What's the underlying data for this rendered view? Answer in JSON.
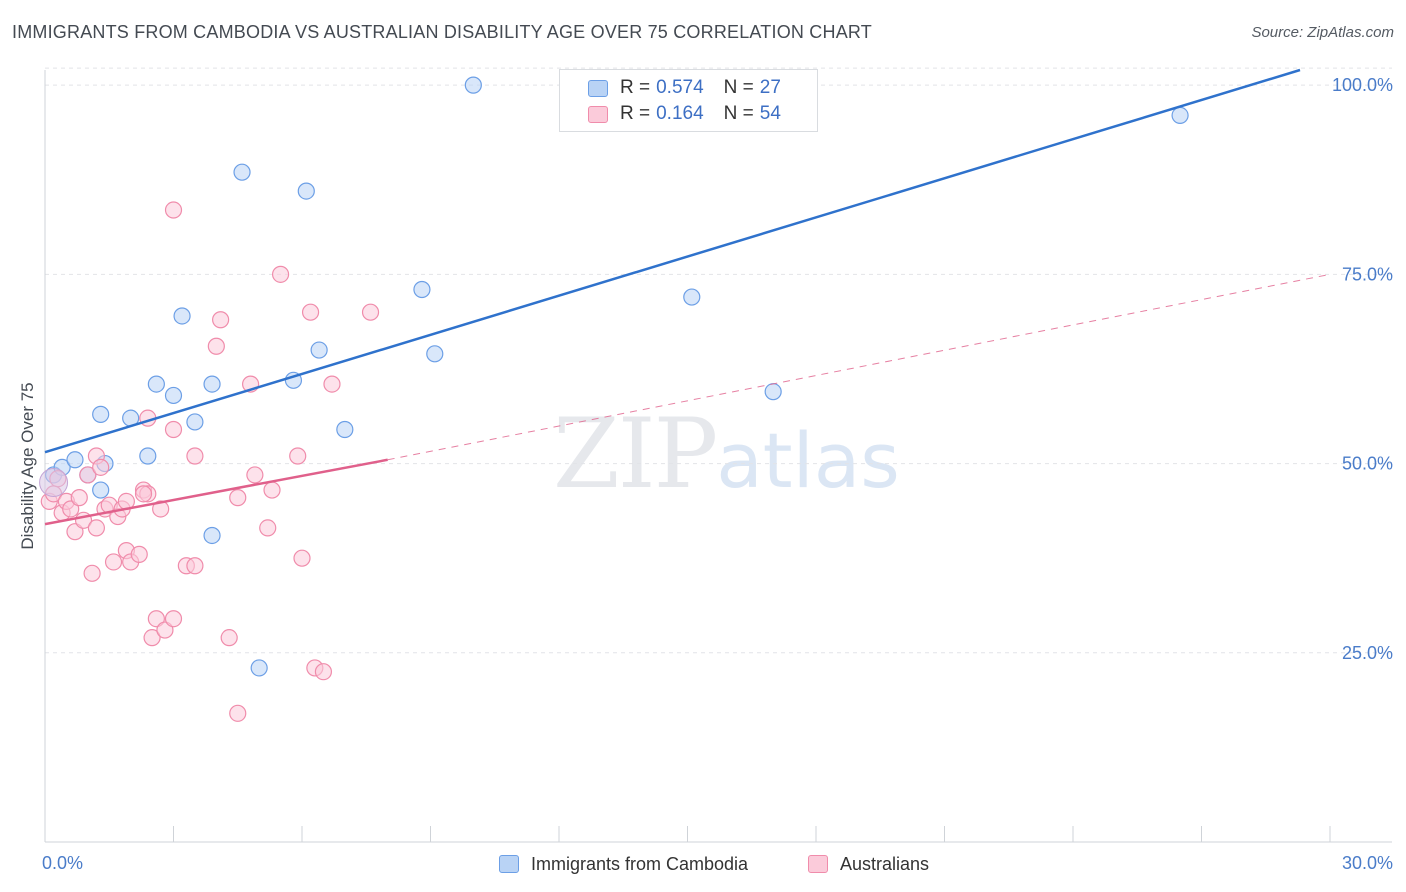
{
  "title": "IMMIGRANTS FROM CAMBODIA VS AUSTRALIAN DISABILITY AGE OVER 75 CORRELATION CHART",
  "source": "Source: ZipAtlas.com",
  "watermark": {
    "zip": "ZIP",
    "atlas": "atlas"
  },
  "legend": {
    "rows": [
      {
        "r_label": "R =",
        "r_value": "0.574",
        "n_label": "N =",
        "n_value": "27",
        "color": "#6c9fe6",
        "fill": "#b9d3f5"
      },
      {
        "r_label": "R =",
        "r_value": "0.164",
        "n_label": "N =",
        "n_value": "54",
        "color": "#f08cab",
        "fill": "#fbcbda"
      }
    ]
  },
  "bottom_legend": [
    {
      "label": "Immigrants from Cambodia",
      "color": "#6c9fe6",
      "fill": "#b9d3f5"
    },
    {
      "label": "Australians",
      "color": "#f08cab",
      "fill": "#fbcbda"
    }
  ],
  "chart_data": {
    "type": "scatter",
    "title": "IMMIGRANTS FROM CAMBODIA VS AUSTRALIAN DISABILITY AGE OVER 75 CORRELATION CHART",
    "xlabel": "",
    "ylabel": "Disability Age Over 75",
    "xlim": [
      0,
      30
    ],
    "ylim": [
      0,
      102
    ],
    "x_tick_labels": [
      {
        "value": 0,
        "label": "0.0%"
      },
      {
        "value": 30,
        "label": "30.0%"
      }
    ],
    "y_tick_labels": [
      {
        "value": 25,
        "label": "25.0%"
      },
      {
        "value": 50,
        "label": "50.0%"
      },
      {
        "value": 75,
        "label": "75.0%"
      },
      {
        "value": 100,
        "label": "100.0%"
      }
    ],
    "grid": true,
    "legend_position": "top-center",
    "series": [
      {
        "name": "Immigrants from Cambodia",
        "color": "#6c9fe6",
        "fill": "#b9d3f5",
        "line_color": "#2f72cc",
        "trend": {
          "x": [
            0,
            29.3
          ],
          "y": [
            51.5,
            102
          ]
        },
        "points": [
          [
            0.2,
            48.5
          ],
          [
            0.4,
            49.5
          ],
          [
            0.7,
            50.5
          ],
          [
            1.0,
            48.5
          ],
          [
            1.3,
            46.5
          ],
          [
            1.4,
            50.0
          ],
          [
            1.3,
            56.5
          ],
          [
            2.0,
            56.0
          ],
          [
            2.4,
            51.0
          ],
          [
            2.6,
            60.5
          ],
          [
            3.0,
            59.0
          ],
          [
            3.2,
            69.5
          ],
          [
            3.5,
            55.5
          ],
          [
            3.9,
            60.5
          ],
          [
            3.9,
            40.5
          ],
          [
            4.6,
            88.5
          ],
          [
            5.0,
            23.0
          ],
          [
            5.8,
            61.0
          ],
          [
            6.1,
            86.0
          ],
          [
            6.4,
            65.0
          ],
          [
            7.0,
            54.5
          ],
          [
            8.8,
            73.0
          ],
          [
            9.1,
            64.5
          ],
          [
            10.0,
            100.0
          ],
          [
            15.1,
            72.0
          ],
          [
            17.0,
            59.5
          ],
          [
            26.5,
            96.0
          ]
        ]
      },
      {
        "name": "Australians",
        "color": "#f08cab",
        "fill": "#fbcbda",
        "line_color": "#e0608b",
        "trend": {
          "x": [
            0,
            8.0
          ],
          "y": [
            42.0,
            50.5
          ]
        },
        "dash_trend": {
          "x": [
            8.0,
            30.0
          ],
          "y": [
            50.5,
            75.0
          ]
        },
        "points": [
          [
            0.1,
            45.0
          ],
          [
            0.2,
            46.0
          ],
          [
            0.4,
            43.5
          ],
          [
            0.5,
            45.0
          ],
          [
            0.6,
            44.0
          ],
          [
            0.7,
            41.0
          ],
          [
            0.8,
            45.5
          ],
          [
            0.9,
            42.5
          ],
          [
            1.0,
            48.5
          ],
          [
            1.1,
            35.5
          ],
          [
            1.2,
            51.0
          ],
          [
            1.2,
            41.5
          ],
          [
            1.3,
            49.5
          ],
          [
            1.4,
            44.0
          ],
          [
            1.5,
            44.5
          ],
          [
            1.6,
            37.0
          ],
          [
            1.7,
            43.0
          ],
          [
            1.8,
            44.0
          ],
          [
            1.9,
            38.5
          ],
          [
            2.0,
            37.0
          ],
          [
            2.2,
            38.0
          ],
          [
            2.3,
            46.5
          ],
          [
            2.4,
            46.0
          ],
          [
            2.4,
            56.0
          ],
          [
            2.5,
            27.0
          ],
          [
            2.6,
            29.5
          ],
          [
            2.7,
            44.0
          ],
          [
            2.8,
            28.0
          ],
          [
            3.0,
            83.5
          ],
          [
            3.0,
            29.5
          ],
          [
            3.0,
            54.5
          ],
          [
            3.3,
            36.5
          ],
          [
            3.5,
            36.5
          ],
          [
            3.5,
            51.0
          ],
          [
            4.0,
            65.5
          ],
          [
            4.1,
            69.0
          ],
          [
            4.3,
            27.0
          ],
          [
            4.5,
            17.0
          ],
          [
            4.5,
            45.5
          ],
          [
            4.8,
            60.5
          ],
          [
            4.9,
            48.5
          ],
          [
            5.2,
            41.5
          ],
          [
            5.3,
            46.5
          ],
          [
            5.5,
            75.0
          ],
          [
            5.9,
            51.0
          ],
          [
            6.0,
            37.5
          ],
          [
            6.2,
            70.0
          ],
          [
            6.3,
            23.0
          ],
          [
            6.5,
            22.5
          ],
          [
            6.7,
            60.5
          ],
          [
            7.6,
            70.0
          ],
          [
            0.3,
            48.0
          ],
          [
            2.3,
            46.0
          ],
          [
            1.9,
            45.0
          ]
        ]
      }
    ]
  }
}
